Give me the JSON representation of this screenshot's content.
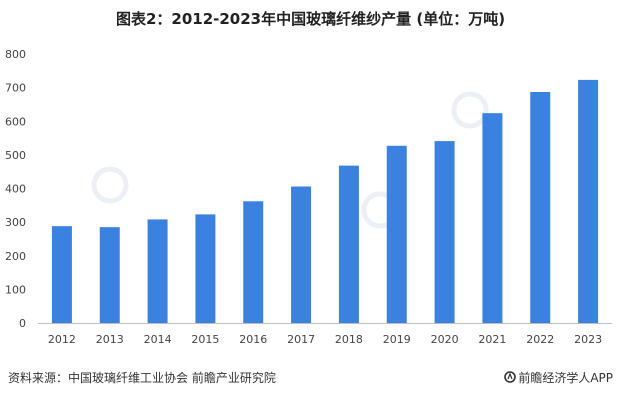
{
  "title": "图表2：2012-2023年中国玻璃纤维纱产量 (单位：万吨)",
  "chart_data": {
    "type": "bar",
    "title": "图表2：2012-2023年中国玻璃纤维纱产量 (单位：万吨)",
    "xlabel": "",
    "ylabel": "",
    "ylim": [
      0,
      800
    ],
    "yticks": [
      0,
      100,
      200,
      300,
      400,
      500,
      600,
      700,
      800
    ],
    "grid": false,
    "categories": [
      "2012",
      "2013",
      "2014",
      "2015",
      "2016",
      "2017",
      "2018",
      "2019",
      "2020",
      "2021",
      "2022",
      "2023"
    ],
    "values": [
      288,
      285,
      308,
      323,
      362,
      406,
      468,
      527,
      541,
      624,
      687,
      723
    ],
    "bar_color": "#3b82e0"
  },
  "footer": {
    "source": "资料来源：中国玻璃纤维工业协会 前瞻产业研究院",
    "brand": "前瞻经济学人APP"
  }
}
